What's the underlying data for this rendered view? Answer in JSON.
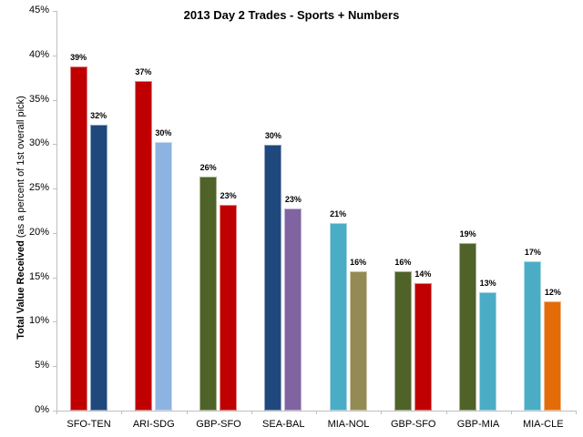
{
  "chart_data": {
    "type": "bar",
    "title": "2013 Day 2 Trades - Sports + Numbers",
    "xlabel": "",
    "ylabel": "Total Value Received (as a percent of 1st overall pick)",
    "ylabel_bold": "Total Value Received",
    "ylabel_rest": " (as a percent of 1st overall pick)",
    "ylim": [
      0,
      45
    ],
    "yticks": [
      "0%",
      "5%",
      "10%",
      "15%",
      "20%",
      "25%",
      "30%",
      "35%",
      "40%",
      "45%"
    ],
    "grid": false,
    "legend": "none",
    "categories": [
      "SFO-TEN",
      "ARI-SDG",
      "GBP-SFO",
      "SEA-BAL",
      "MIA-NOL",
      "GBP-SFO",
      "GBP-MIA",
      "MIA-CLE"
    ],
    "series": [
      {
        "name": "Team 1",
        "values": [
          38.7,
          37.1,
          26.3,
          29.9,
          21.1,
          15.7,
          18.9,
          16.8
        ],
        "labels": [
          "39%",
          "37%",
          "26%",
          "30%",
          "21%",
          "16%",
          "19%",
          "17%"
        ],
        "colors": [
          "#c00000",
          "#c00000",
          "#4f6228",
          "#1f497d",
          "#4bacc6",
          "#4f6228",
          "#4f6228",
          "#4bacc6"
        ]
      },
      {
        "name": "Team 2",
        "values": [
          32.2,
          30.2,
          23.2,
          22.8,
          15.7,
          14.4,
          13.3,
          12.3
        ],
        "labels": [
          "32%",
          "30%",
          "23%",
          "23%",
          "16%",
          "14%",
          "13%",
          "12%"
        ],
        "colors": [
          "#1f497d",
          "#8db3e2",
          "#c00000",
          "#8064a2",
          "#948a54",
          "#c00000",
          "#4bacc6",
          "#e36c09"
        ]
      }
    ]
  }
}
